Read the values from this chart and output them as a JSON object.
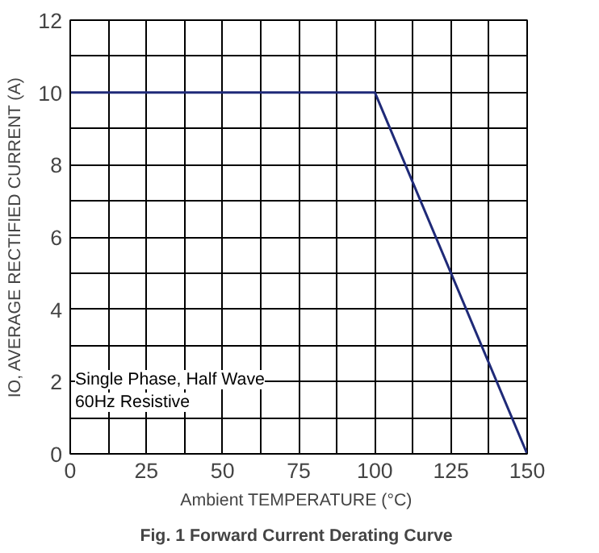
{
  "chart_data": {
    "type": "line",
    "title": "Fig. 1  Forward Current Derating Curve",
    "xlabel": "Ambient  TEMPERATURE (°C)",
    "ylabel": "IO, AVERAGE RECTIFIED CURRENT (A)",
    "x": [
      0,
      100,
      150
    ],
    "series": [
      {
        "color": "#1f2a78",
        "values": [
          10,
          10,
          0
        ]
      }
    ],
    "xlim": [
      0,
      150
    ],
    "ylim": [
      0,
      12
    ],
    "xticks": [
      0,
      {
        "value": 12.5,
        "label": null
      },
      25,
      {
        "value": 37.5,
        "label": null
      },
      50,
      {
        "value": 62.5,
        "label": null
      },
      75,
      {
        "value": 87.5,
        "label": null
      },
      100,
      {
        "value": 112.5,
        "label": null
      },
      125,
      {
        "value": 137.5,
        "label": null
      },
      150
    ],
    "yticks": [
      0,
      {
        "value": 1,
        "label": null
      },
      2,
      {
        "value": 3,
        "label": null
      },
      4,
      {
        "value": 5,
        "label": null
      },
      6,
      {
        "value": 7,
        "label": null
      },
      8,
      {
        "value": 9,
        "label": null
      },
      10,
      {
        "value": 11,
        "label": null
      },
      12
    ],
    "grid": true,
    "marker": "none",
    "line_style": "solid",
    "annotations": [
      "Single Phase, Half Wave",
      "60Hz Resistive"
    ]
  }
}
